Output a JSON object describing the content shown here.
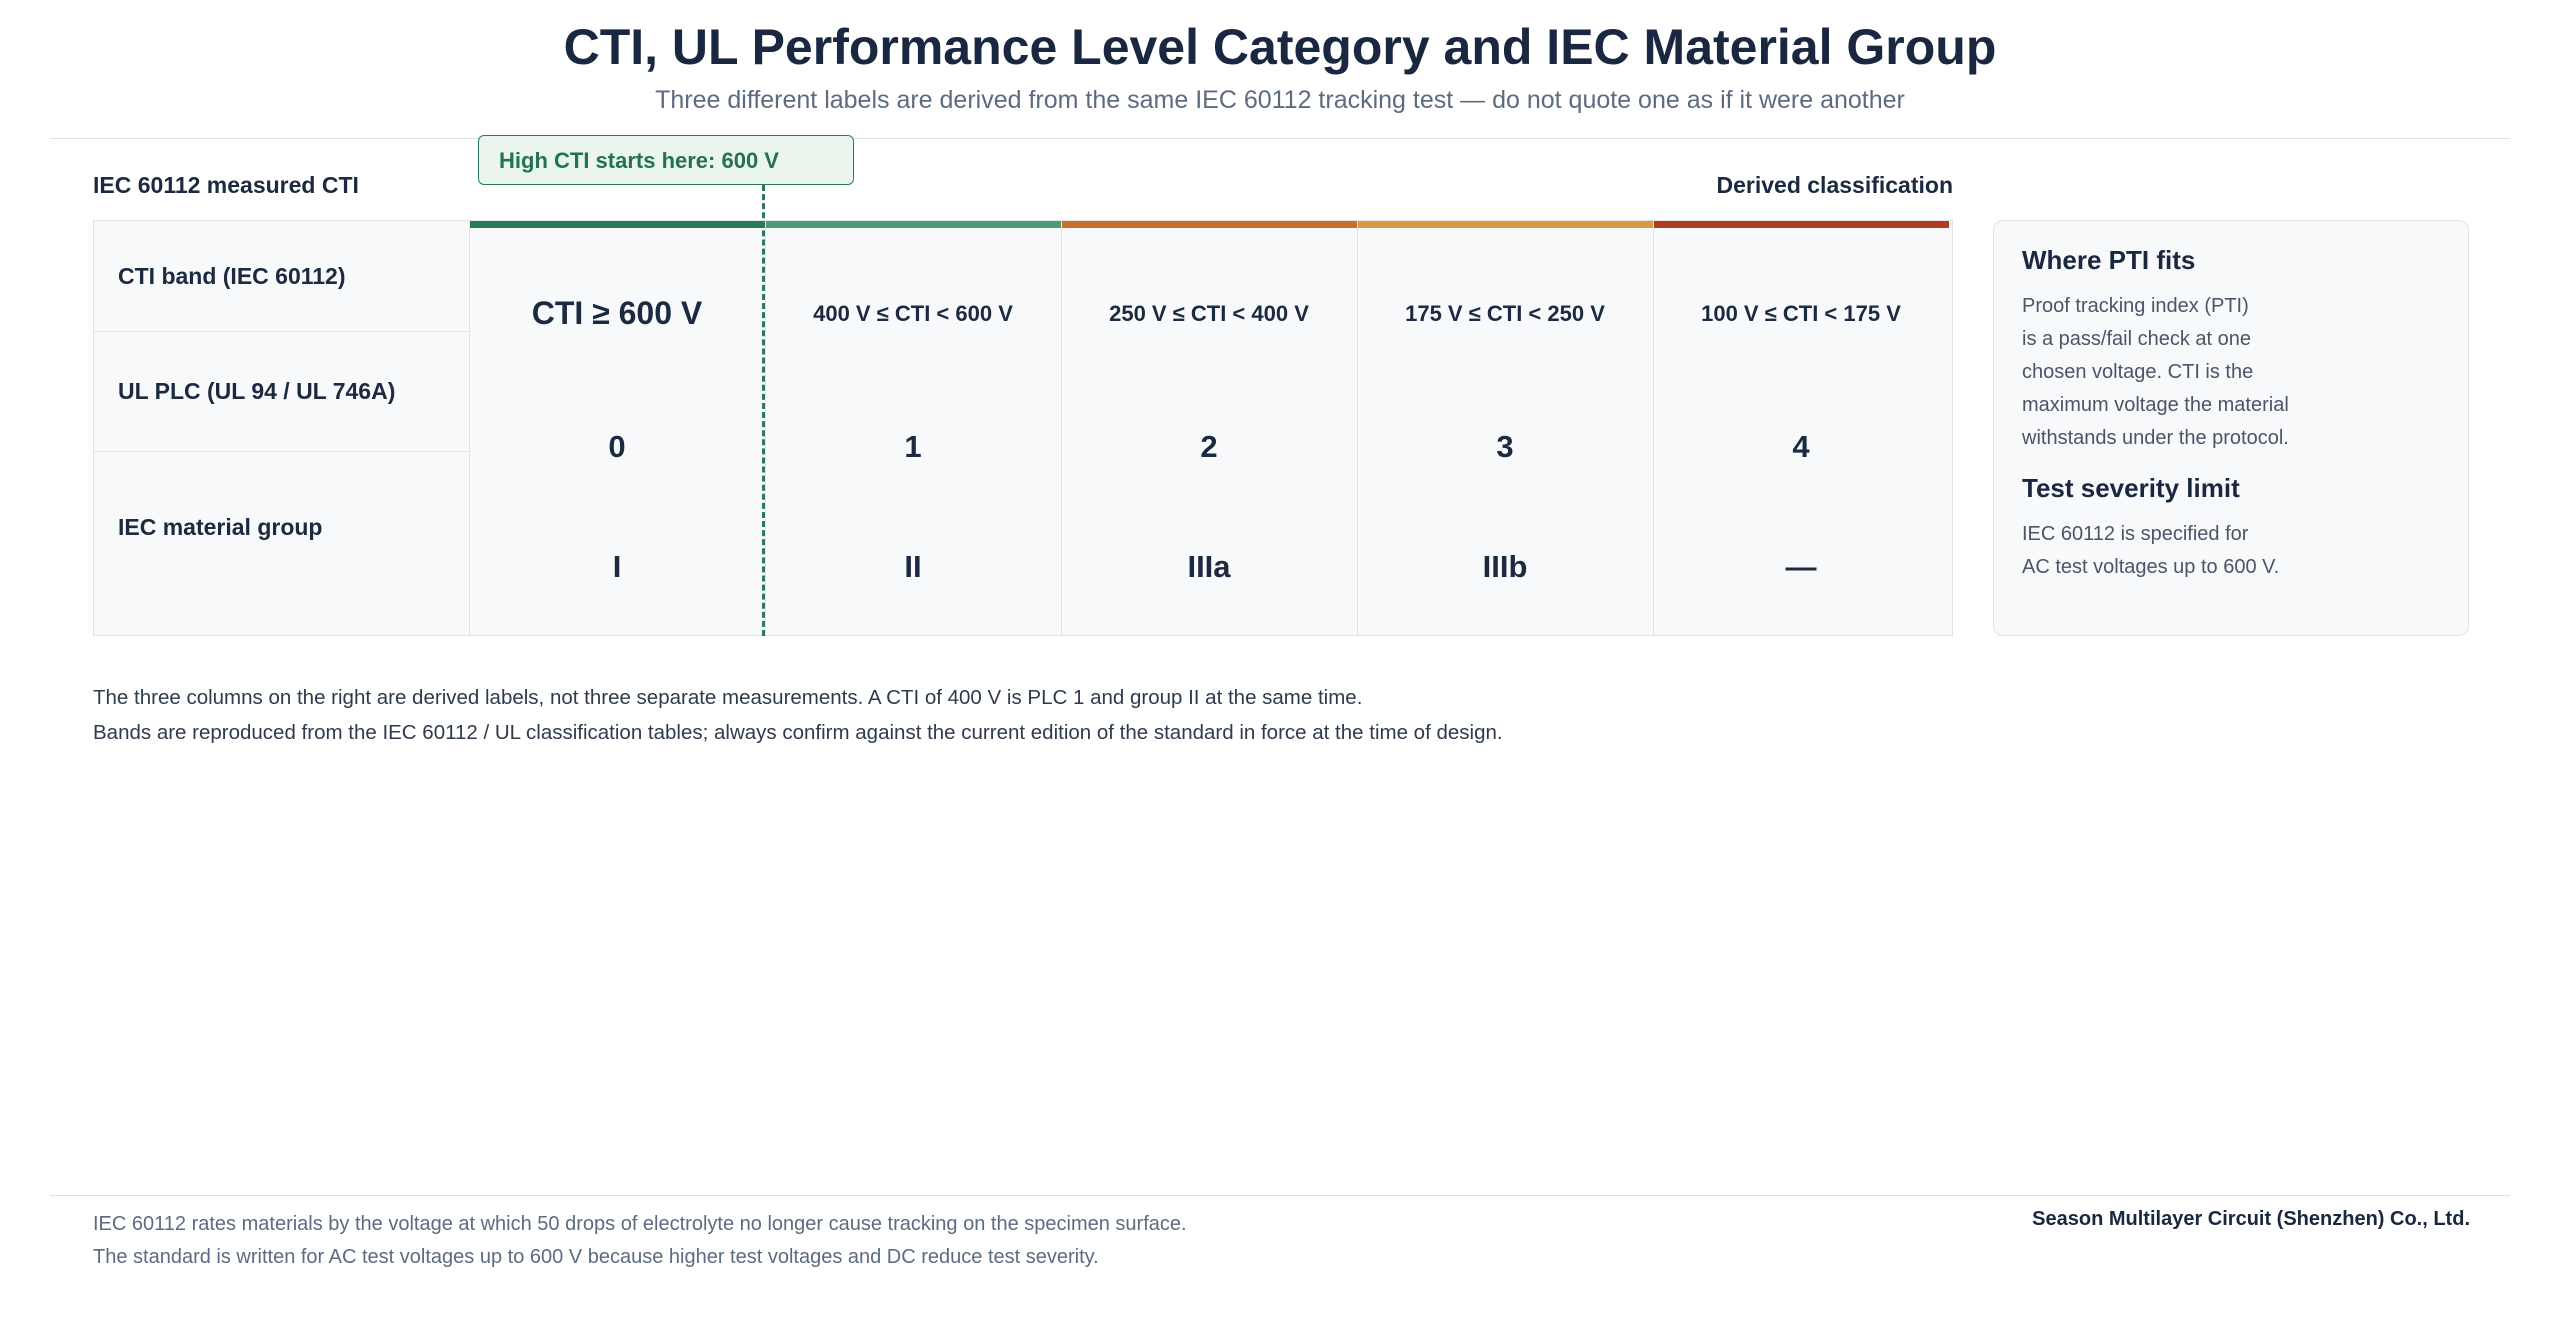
{
  "header": {
    "title": "CTI, UL Performance Level Category and IEC Material Group",
    "subtitle": "Three different labels are derived from the same IEC 60112 tracking test — do not quote one as if it were another"
  },
  "axes": {
    "left_label": "IEC 60112 measured CTI",
    "right_label": "Derived classification"
  },
  "callout": "High CTI starts here: 600 V",
  "row_headers": [
    "CTI band (IEC 60112)",
    "UL PLC (UL 94 / UL 746A)",
    "IEC material group"
  ],
  "bands": [
    {
      "cti": "CTI ≥ 600 V",
      "plc": "0",
      "group": "I",
      "color": "#2a7a55"
    },
    {
      "cti": "400 V ≤ CTI < 600 V",
      "plc": "1",
      "group": "II",
      "color": "#4f9a76"
    },
    {
      "cti": "250 V ≤ CTI < 400 V",
      "plc": "2",
      "group": "IIIa",
      "color": "#c9712c"
    },
    {
      "cti": "175 V ≤ CTI < 250 V",
      "plc": "3",
      "group": "IIIb",
      "color": "#d69a43"
    },
    {
      "cti": "100 V ≤ CTI < 175 V",
      "plc": "4",
      "group": "—",
      "color": "#b23c20"
    }
  ],
  "side_panel": {
    "heading1": "Where PTI fits",
    "text1": "Proof tracking index (PTI)\nis a pass/fail check at one\nchosen voltage. CTI is the\nmaximum voltage the material\nwithstands under the protocol.",
    "heading2": "Test severity limit",
    "text2": "IEC 60112 is specified for\nAC test voltages up to 600 V."
  },
  "notes": [
    "The three columns on the right are derived labels, not three separate measurements. A CTI of 400 V is PLC 1 and group II at the same time.",
    "Bands are reproduced from the IEC 60112 / UL classification tables; always confirm against the current edition of the standard in force at the time of design."
  ],
  "footer": {
    "line1": "IEC 60112 rates materials by the voltage at which 50 drops of electrolyte no longer cause tracking on the specimen surface.",
    "line2": "The standard is written for AC test voltages up to 600 V because higher test voltages and DC reduce test severity.",
    "company": "Season Multilayer Circuit (Shenzhen) Co., Ltd."
  }
}
